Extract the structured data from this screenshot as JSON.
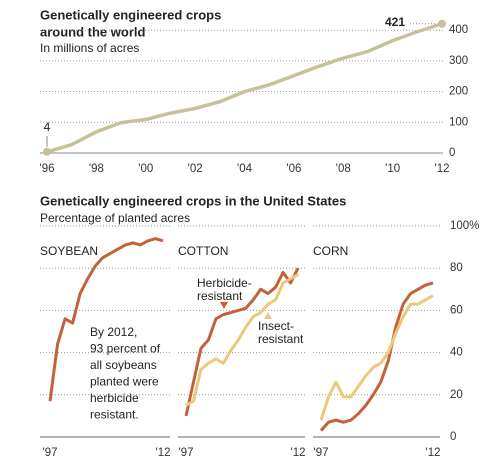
{
  "chart_data": [
    {
      "type": "line",
      "title": [
        "Genetically engineered crops",
        "around the world"
      ],
      "subtitle": "In millions of acres",
      "categories": [
        "'96",
        null,
        "'98",
        null,
        "'00",
        null,
        "'02",
        null,
        "'04",
        null,
        "'06",
        null,
        "'08",
        null,
        "'10",
        null,
        "'12"
      ],
      "series": [
        {
          "color": "#c6c19b",
          "values": [
            4,
            27,
            69,
            99,
            109,
            130,
            145,
            167,
            200,
            222,
            252,
            282,
            309,
            331,
            366,
            395,
            421
          ]
        }
      ],
      "ylim": [
        0,
        430
      ],
      "yticks": [
        0,
        100,
        200,
        300,
        400
      ],
      "grid": true
    },
    {
      "type": "line",
      "title": "Genetically engineered crops in the United States",
      "subtitle": "Percentage of planted acres",
      "panel": "SOYBEAN",
      "categories": [
        "'97",
        null,
        null,
        null,
        null,
        null,
        null,
        null,
        null,
        null,
        null,
        null,
        null,
        null,
        null,
        "'12"
      ],
      "series": [
        {
          "color": "#c2623a",
          "values": [
            17,
            44,
            56,
            54,
            68,
            75,
            81,
            85,
            87,
            89,
            91,
            92,
            91,
            93,
            94,
            93
          ]
        }
      ],
      "ylim": [
        0,
        100
      ],
      "annotation": [
        "By 2012,",
        "93 percent of",
        "all soybeans",
        "planted were",
        "herbicide",
        "resistant."
      ]
    },
    {
      "type": "line",
      "panel": "COTTON",
      "categories": [
        "'97",
        null,
        null,
        null,
        null,
        null,
        null,
        null,
        null,
        null,
        null,
        null,
        null,
        null,
        null,
        "'12"
      ],
      "series": [
        {
          "name": [
            "Herbicide-",
            "resistant"
          ],
          "color": "#c2623a",
          "values": [
            10,
            26,
            42,
            46,
            56,
            58,
            59,
            60,
            61,
            65,
            70,
            68,
            71,
            78,
            73,
            80
          ]
        },
        {
          "name": [
            "Insect-",
            "resistant"
          ],
          "color": "#ebc97c",
          "values": [
            15,
            17,
            32,
            35,
            37,
            35,
            41,
            46,
            52,
            57,
            59,
            63,
            65,
            73,
            75,
            77
          ]
        }
      ],
      "ylim": [
        0,
        100
      ]
    },
    {
      "type": "line",
      "panel": "CORN",
      "categories": [
        "'97",
        null,
        null,
        null,
        null,
        null,
        null,
        null,
        null,
        null,
        null,
        null,
        null,
        null,
        null,
        "'12"
      ],
      "series": [
        {
          "color": "#c2623a",
          "values": [
            3,
            7,
            8,
            7,
            8,
            11,
            15,
            20,
            26,
            36,
            52,
            63,
            68,
            70,
            72,
            73
          ]
        },
        {
          "color": "#ebc97c",
          "values": [
            8,
            19,
            26,
            19,
            19,
            24,
            29,
            33,
            35,
            40,
            49,
            57,
            63,
            63,
            65,
            67
          ]
        }
      ],
      "ylim": [
        0,
        100
      ],
      "yticks": [
        0,
        20,
        40,
        60,
        80,
        {
          "value": 100,
          "label": "100%"
        }
      ],
      "grid": true
    }
  ]
}
